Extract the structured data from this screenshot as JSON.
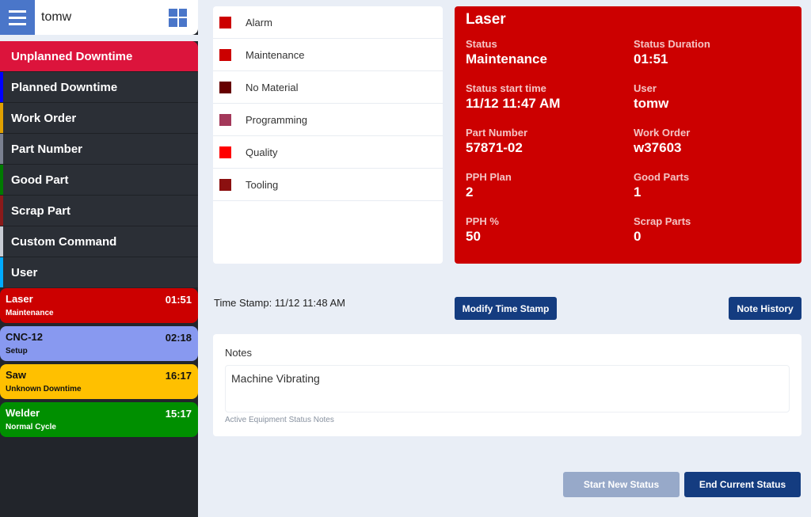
{
  "header": {
    "user": "tomw"
  },
  "sidebar": {
    "unplanned": "Unplanned Downtime",
    "commands": [
      {
        "label": "Planned Downtime",
        "color": "#0000ff"
      },
      {
        "label": "Work Order",
        "color": "#e0a000"
      },
      {
        "label": "Part Number",
        "color": "#7a8090"
      },
      {
        "label": "Good Part",
        "color": "#007a00"
      },
      {
        "label": "Scrap Part",
        "color": "#8b1a1a"
      },
      {
        "label": "Custom Command",
        "color": "#c8ccd4"
      },
      {
        "label": "User",
        "color": "#00aaff"
      }
    ],
    "equipment": [
      {
        "name": "Laser",
        "time": "01:51",
        "status": "Maintenance",
        "bg": "#cc0000",
        "fg": "#ffffff"
      },
      {
        "name": "CNC-12",
        "time": "02:18",
        "status": "Setup",
        "bg": "#8899f0",
        "fg": "#111111"
      },
      {
        "name": "Saw",
        "time": "16:17",
        "status": "Unknown Downtime",
        "bg": "#ffc000",
        "fg": "#111111"
      },
      {
        "name": "Welder",
        "time": "15:17",
        "status": "Normal Cycle",
        "bg": "#008f00",
        "fg": "#ffffff"
      }
    ]
  },
  "legend": [
    {
      "label": "Alarm",
      "color": "#cc0000"
    },
    {
      "label": "Maintenance",
      "color": "#cc0000"
    },
    {
      "label": "No Material",
      "color": "#660000"
    },
    {
      "label": "Programming",
      "color": "#a3385a"
    },
    {
      "label": "Quality",
      "color": "#ff0000"
    },
    {
      "label": "Tooling",
      "color": "#8b1010"
    }
  ],
  "detail": {
    "title": "Laser",
    "fields": [
      {
        "label": "Status",
        "value": "Maintenance"
      },
      {
        "label": "Status Duration",
        "value": "01:51"
      },
      {
        "label": "Status start time",
        "value": "11/12 11:47 AM"
      },
      {
        "label": "User",
        "value": "tomw"
      },
      {
        "label": "Part Number",
        "value": "57871-02"
      },
      {
        "label": "Work Order",
        "value": "w37603"
      },
      {
        "label": "PPH Plan",
        "value": "2"
      },
      {
        "label": "Good Parts",
        "value": "1"
      },
      {
        "label": "PPH %",
        "value": "50"
      },
      {
        "label": "Scrap Parts",
        "value": "0"
      }
    ]
  },
  "timestamp": {
    "label": "Time Stamp:",
    "value": "11/12 11:48 AM"
  },
  "buttons": {
    "modify": "Modify Time Stamp",
    "history": "Note History",
    "start": "Start New Status",
    "end": "End Current Status"
  },
  "notes": {
    "label": "Notes",
    "value": "Machine Vibrating",
    "hint": "Active Equipment Status Notes"
  }
}
